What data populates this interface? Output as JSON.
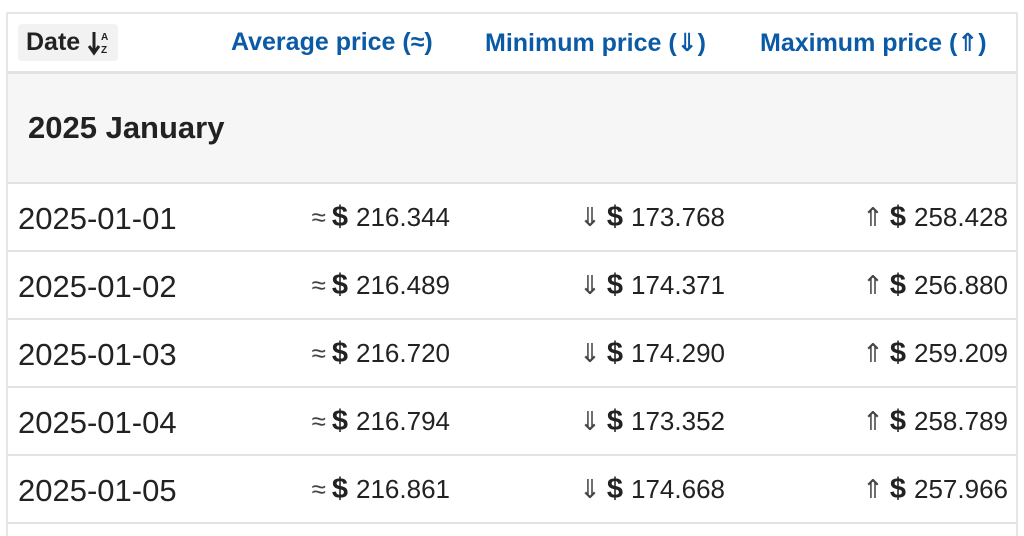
{
  "header": {
    "date_label": "Date",
    "avg_label": "Average price (≈)",
    "min_label": "Minimum price (⇓)",
    "max_label": "Maximum price (⇑)"
  },
  "group": {
    "title": "2025 January"
  },
  "currency_symbol": "$",
  "symbols": {
    "avg": "≈",
    "min": "⇓",
    "max": "⇑"
  },
  "rows": [
    {
      "date": "2025-01-01",
      "avg": "216.344",
      "min": "173.768",
      "max": "258.428"
    },
    {
      "date": "2025-01-02",
      "avg": "216.489",
      "min": "174.371",
      "max": "256.880"
    },
    {
      "date": "2025-01-03",
      "avg": "216.720",
      "min": "174.290",
      "max": "259.209"
    },
    {
      "date": "2025-01-04",
      "avg": "216.794",
      "min": "173.352",
      "max": "258.789"
    },
    {
      "date": "2025-01-05",
      "avg": "216.861",
      "min": "174.668",
      "max": "257.966"
    }
  ],
  "colors": {
    "header_link": "#0b5aa6",
    "text": "#222222",
    "group_bg": "#f6f6f6",
    "border": "#e3e3e3"
  },
  "icons": {
    "sort": "sort-ascending-alpha-icon"
  }
}
